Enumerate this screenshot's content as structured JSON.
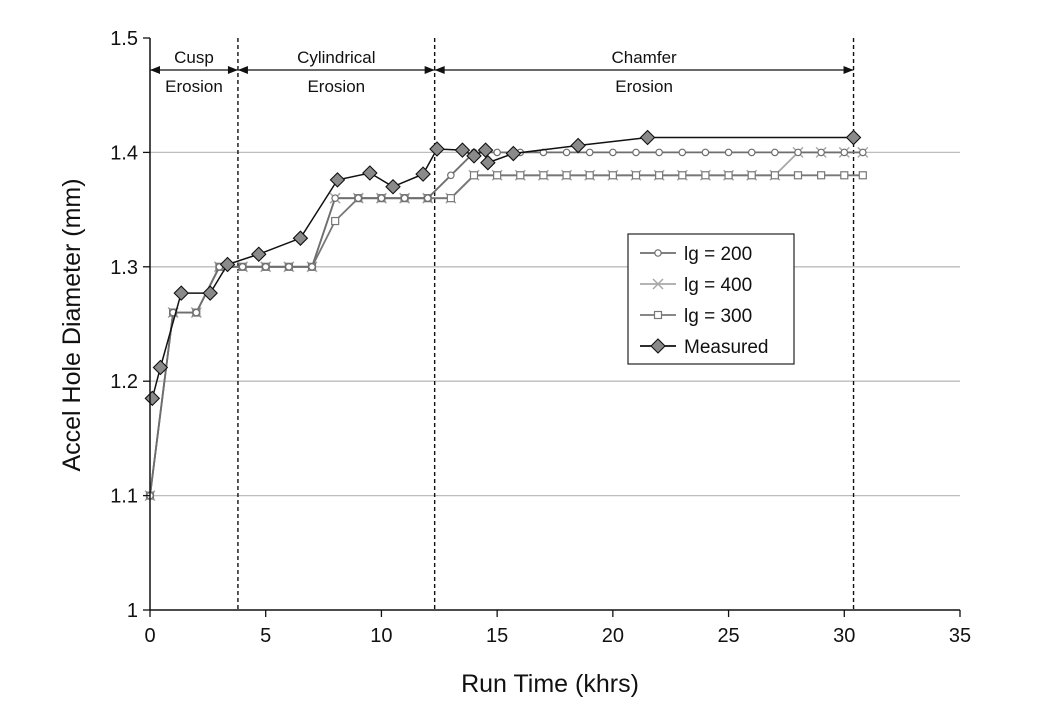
{
  "chart_data": {
    "type": "line",
    "title": "",
    "xlabel": "Run Time (khrs)",
    "ylabel": "Accel Hole Diameter (mm)",
    "xlim": [
      0,
      35
    ],
    "ylim": [
      1,
      1.5
    ],
    "x_ticks": [
      "0",
      "5",
      "10",
      "15",
      "20",
      "25",
      "30",
      "35"
    ],
    "y_ticks": [
      "1",
      "1.1",
      "1.2",
      "1.3",
      "1.4",
      "1.5"
    ],
    "y_gridlines": [
      1.1,
      1.2,
      1.3,
      1.4
    ],
    "grid": "horizontal",
    "legend_position": "right-center",
    "region_boundaries": [
      3.8,
      12.3,
      30.4
    ],
    "regions": [
      {
        "line1": "Cusp",
        "line2": "Erosion",
        "start": 0,
        "end": 3.8
      },
      {
        "line1": "Cylindrical",
        "line2": "Erosion",
        "start": 3.8,
        "end": 12.3
      },
      {
        "line1": "Chamfer",
        "line2": "Erosion",
        "start": 12.3,
        "end": 30.4
      }
    ],
    "series": [
      {
        "name": "lg = 200",
        "marker": "circle",
        "color": "#6e6e6e",
        "x": [
          0,
          1,
          2,
          3,
          4,
          5,
          6,
          7,
          8,
          9,
          10,
          11,
          12,
          13,
          14,
          15,
          16,
          17,
          18,
          19,
          20,
          21,
          22,
          23,
          24,
          25,
          26,
          27,
          28,
          29,
          30,
          30.8
        ],
        "y": [
          1.1,
          1.26,
          1.26,
          1.3,
          1.3,
          1.3,
          1.3,
          1.3,
          1.36,
          1.36,
          1.36,
          1.36,
          1.36,
          1.38,
          1.4,
          1.4,
          1.4,
          1.4,
          1.4,
          1.4,
          1.4,
          1.4,
          1.4,
          1.4,
          1.4,
          1.4,
          1.4,
          1.4,
          1.4,
          1.4,
          1.4,
          1.4
        ]
      },
      {
        "name": "lg = 400",
        "marker": "x",
        "color": "#a8a8a8",
        "x": [
          0,
          1,
          2,
          3,
          4,
          5,
          6,
          7,
          8,
          9,
          10,
          11,
          12,
          13,
          14,
          15,
          16,
          17,
          18,
          19,
          20,
          21,
          22,
          23,
          24,
          25,
          26,
          27,
          28,
          29,
          30,
          30.8
        ],
        "y": [
          1.1,
          1.26,
          1.26,
          1.3,
          1.3,
          1.3,
          1.3,
          1.3,
          1.36,
          1.36,
          1.36,
          1.36,
          1.36,
          1.36,
          1.38,
          1.38,
          1.38,
          1.38,
          1.38,
          1.38,
          1.38,
          1.38,
          1.38,
          1.38,
          1.38,
          1.38,
          1.38,
          1.38,
          1.4,
          1.4,
          1.4,
          1.4
        ]
      },
      {
        "name": "lg = 300",
        "marker": "square",
        "color": "#777777",
        "x": [
          0,
          1,
          2,
          3,
          4,
          5,
          6,
          7,
          8,
          9,
          10,
          11,
          12,
          13,
          14,
          15,
          16,
          17,
          18,
          19,
          20,
          21,
          22,
          23,
          24,
          25,
          26,
          27,
          28,
          29,
          30,
          30.8
        ],
        "y": [
          1.1,
          1.26,
          1.26,
          1.3,
          1.3,
          1.3,
          1.3,
          1.3,
          1.34,
          1.36,
          1.36,
          1.36,
          1.36,
          1.36,
          1.38,
          1.38,
          1.38,
          1.38,
          1.38,
          1.38,
          1.38,
          1.38,
          1.38,
          1.38,
          1.38,
          1.38,
          1.38,
          1.38,
          1.38,
          1.38,
          1.38,
          1.38
        ]
      },
      {
        "name": "Measured",
        "marker": "diamond",
        "color": "#111111",
        "fill": "#8a8a8a",
        "x": [
          0.1,
          0.45,
          1.35,
          2.6,
          3.35,
          4.7,
          6.5,
          8.1,
          9.5,
          10.5,
          11.8,
          12.4,
          13.5,
          14.0,
          14.5,
          14.6,
          15.7,
          18.5,
          21.5,
          30.4
        ],
        "y": [
          1.185,
          1.212,
          1.277,
          1.277,
          1.302,
          1.311,
          1.325,
          1.376,
          1.382,
          1.37,
          1.381,
          1.403,
          1.402,
          1.397,
          1.402,
          1.391,
          1.399,
          1.406,
          1.413,
          1.413
        ]
      }
    ]
  }
}
